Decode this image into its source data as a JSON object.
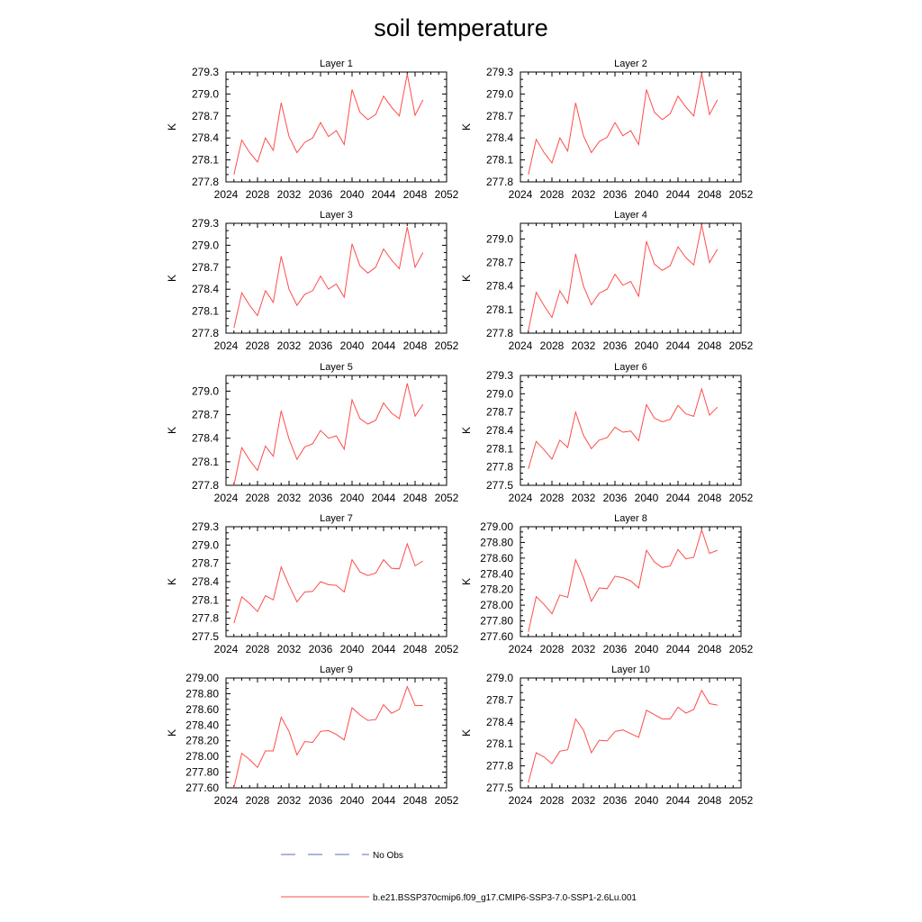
{
  "title": "soil temperature",
  "legend": {
    "entries": [
      {
        "label": "No Obs",
        "color": "#5a6fb4",
        "style": "dashed"
      },
      {
        "label": "b.e21.BSSP370cmip6.f09_g17.CMIP6-SSP3-7.0-SSP1-2.6Lu.001",
        "color": "#ff4b4b",
        "style": "solid"
      }
    ]
  },
  "chart_data": [
    {
      "type": "line",
      "title": "Layer 1",
      "ylabel": "K",
      "xlim": [
        2024,
        2052
      ],
      "ylim": [
        277.8,
        279.3
      ],
      "xticks": [
        "2024",
        "2028",
        "2032",
        "2036",
        "2040",
        "2044",
        "2048",
        "2052"
      ],
      "yticks": [
        "277.8",
        "278.1",
        "278.4",
        "278.7",
        "279.0",
        "279.3"
      ],
      "x": [
        2025,
        2026,
        2027,
        2028,
        2029,
        2030,
        2031,
        2032,
        2033,
        2034,
        2035,
        2036,
        2037,
        2038,
        2039,
        2040,
        2041,
        2042,
        2043,
        2044,
        2045,
        2046,
        2047,
        2048,
        2049
      ],
      "series": [
        {
          "name": "b.e21.BSSP370cmip6.f09_g17.CMIP6-SSP3-7.0-SSP1-2.6Lu.001",
          "values": [
            277.9,
            278.37,
            278.2,
            278.07,
            278.4,
            278.23,
            278.88,
            278.42,
            278.2,
            278.34,
            278.4,
            278.61,
            278.42,
            278.5,
            278.31,
            279.06,
            278.75,
            278.65,
            278.72,
            278.97,
            278.82,
            278.7,
            279.27,
            278.71,
            278.92
          ]
        }
      ]
    },
    {
      "type": "line",
      "title": "Layer 2",
      "ylabel": "K",
      "xlim": [
        2024,
        2052
      ],
      "ylim": [
        277.8,
        279.3
      ],
      "xticks": [
        "2024",
        "2028",
        "2032",
        "2036",
        "2040",
        "2044",
        "2048",
        "2052"
      ],
      "yticks": [
        "277.8",
        "278.1",
        "278.4",
        "278.7",
        "279.0",
        "279.3"
      ],
      "x": [
        2025,
        2026,
        2027,
        2028,
        2029,
        2030,
        2031,
        2032,
        2033,
        2034,
        2035,
        2036,
        2037,
        2038,
        2039,
        2040,
        2041,
        2042,
        2043,
        2044,
        2045,
        2046,
        2047,
        2048,
        2049
      ],
      "series": [
        {
          "name": "b.e21.BSSP370cmip6.f09_g17.CMIP6-SSP3-7.0-SSP1-2.6Lu.001",
          "values": [
            277.9,
            278.38,
            278.2,
            278.06,
            278.4,
            278.22,
            278.88,
            278.43,
            278.2,
            278.35,
            278.41,
            278.61,
            278.43,
            278.5,
            278.31,
            279.06,
            278.75,
            278.65,
            278.73,
            278.97,
            278.82,
            278.7,
            279.28,
            278.72,
            278.92
          ]
        }
      ]
    },
    {
      "type": "line",
      "title": "Layer 3",
      "ylabel": "K",
      "xlim": [
        2024,
        2052
      ],
      "ylim": [
        277.8,
        279.3
      ],
      "xticks": [
        "2024",
        "2028",
        "2032",
        "2036",
        "2040",
        "2044",
        "2048",
        "2052"
      ],
      "yticks": [
        "277.8",
        "278.1",
        "278.4",
        "278.7",
        "279.0",
        "279.3"
      ],
      "x": [
        2025,
        2026,
        2027,
        2028,
        2029,
        2030,
        2031,
        2032,
        2033,
        2034,
        2035,
        2036,
        2037,
        2038,
        2039,
        2040,
        2041,
        2042,
        2043,
        2044,
        2045,
        2046,
        2047,
        2048,
        2049
      ],
      "series": [
        {
          "name": "b.e21.BSSP370cmip6.f09_g17.CMIP6-SSP3-7.0-SSP1-2.6Lu.001",
          "values": [
            277.87,
            278.35,
            278.18,
            278.04,
            278.38,
            278.22,
            278.85,
            278.4,
            278.18,
            278.33,
            278.38,
            278.58,
            278.4,
            278.47,
            278.29,
            279.02,
            278.72,
            278.62,
            278.7,
            278.95,
            278.8,
            278.68,
            279.25,
            278.7,
            278.9
          ]
        }
      ]
    },
    {
      "type": "line",
      "title": "Layer 4",
      "ylabel": "K",
      "xlim": [
        2024,
        2052
      ],
      "ylim": [
        277.8,
        279.2
      ],
      "xticks": [
        "2024",
        "2028",
        "2032",
        "2036",
        "2040",
        "2044",
        "2048",
        "2052"
      ],
      "yticks": [
        "277.8",
        "278.1",
        "278.4",
        "278.7",
        "279.0"
      ],
      "x": [
        2025,
        2026,
        2027,
        2028,
        2029,
        2030,
        2031,
        2032,
        2033,
        2034,
        2035,
        2036,
        2037,
        2038,
        2039,
        2040,
        2041,
        2042,
        2043,
        2044,
        2045,
        2046,
        2047,
        2048,
        2049
      ],
      "series": [
        {
          "name": "b.e21.BSSP370cmip6.f09_g17.CMIP6-SSP3-7.0-SSP1-2.6Lu.001",
          "values": [
            277.83,
            278.32,
            278.15,
            278.0,
            278.34,
            278.18,
            278.81,
            278.4,
            278.16,
            278.31,
            278.36,
            278.55,
            278.41,
            278.46,
            278.27,
            278.97,
            278.68,
            278.6,
            278.66,
            278.9,
            278.76,
            278.67,
            279.18,
            278.7,
            278.87
          ]
        }
      ]
    },
    {
      "type": "line",
      "title": "Layer 5",
      "ylabel": "K",
      "xlim": [
        2024,
        2052
      ],
      "ylim": [
        277.8,
        279.2
      ],
      "xticks": [
        "2024",
        "2028",
        "2032",
        "2036",
        "2040",
        "2044",
        "2048",
        "2052"
      ],
      "yticks": [
        "277.8",
        "278.1",
        "278.4",
        "278.7",
        "279.0"
      ],
      "x": [
        2025,
        2026,
        2027,
        2028,
        2029,
        2030,
        2031,
        2032,
        2033,
        2034,
        2035,
        2036,
        2037,
        2038,
        2039,
        2040,
        2041,
        2042,
        2043,
        2044,
        2045,
        2046,
        2047,
        2048,
        2049
      ],
      "series": [
        {
          "name": "b.e21.BSSP370cmip6.f09_g17.CMIP6-SSP3-7.0-SSP1-2.6Lu.001",
          "values": [
            277.8,
            278.28,
            278.12,
            277.99,
            278.3,
            278.17,
            278.75,
            278.39,
            278.13,
            278.29,
            278.33,
            278.5,
            278.4,
            278.43,
            278.26,
            278.89,
            278.65,
            278.58,
            278.63,
            278.85,
            278.72,
            278.65,
            279.1,
            278.68,
            278.83
          ]
        }
      ]
    },
    {
      "type": "line",
      "title": "Layer 6",
      "ylabel": "K",
      "xlim": [
        2024,
        2052
      ],
      "ylim": [
        277.5,
        279.3
      ],
      "xticks": [
        "2024",
        "2028",
        "2032",
        "2036",
        "2040",
        "2044",
        "2048",
        "2052"
      ],
      "yticks": [
        "277.5",
        "277.8",
        "278.1",
        "278.4",
        "278.7",
        "279.0",
        "279.3"
      ],
      "x": [
        2025,
        2026,
        2027,
        2028,
        2029,
        2030,
        2031,
        2032,
        2033,
        2034,
        2035,
        2036,
        2037,
        2038,
        2039,
        2040,
        2041,
        2042,
        2043,
        2044,
        2045,
        2046,
        2047,
        2048,
        2049
      ],
      "series": [
        {
          "name": "b.e21.BSSP370cmip6.f09_g17.CMIP6-SSP3-7.0-SSP1-2.6Lu.001",
          "values": [
            277.77,
            278.22,
            278.08,
            277.93,
            278.24,
            278.12,
            278.7,
            278.32,
            278.1,
            278.24,
            278.28,
            278.45,
            278.37,
            278.39,
            278.23,
            278.82,
            278.6,
            278.54,
            278.58,
            278.81,
            278.67,
            278.63,
            279.08,
            278.65,
            278.78
          ]
        }
      ]
    },
    {
      "type": "line",
      "title": "Layer 7",
      "ylabel": "K",
      "xlim": [
        2024,
        2052
      ],
      "ylim": [
        277.5,
        279.3
      ],
      "xticks": [
        "2024",
        "2028",
        "2032",
        "2036",
        "2040",
        "2044",
        "2048",
        "2052"
      ],
      "yticks": [
        "277.5",
        "277.8",
        "278.1",
        "278.4",
        "278.7",
        "279.0",
        "279.3"
      ],
      "x": [
        2025,
        2026,
        2027,
        2028,
        2029,
        2030,
        2031,
        2032,
        2033,
        2034,
        2035,
        2036,
        2037,
        2038,
        2039,
        2040,
        2041,
        2042,
        2043,
        2044,
        2045,
        2046,
        2047,
        2048,
        2049
      ],
      "series": [
        {
          "name": "b.e21.BSSP370cmip6.f09_g17.CMIP6-SSP3-7.0-SSP1-2.6Lu.001",
          "values": [
            277.72,
            278.15,
            278.04,
            277.91,
            278.17,
            278.1,
            278.64,
            278.34,
            278.07,
            278.23,
            278.24,
            278.4,
            278.35,
            278.34,
            278.23,
            278.76,
            278.56,
            278.5,
            278.54,
            278.76,
            278.62,
            278.61,
            279.02,
            278.66,
            278.74
          ]
        }
      ]
    },
    {
      "type": "line",
      "title": "Layer 8",
      "ylabel": "K",
      "xlim": [
        2024,
        2052
      ],
      "ylim": [
        277.6,
        279.0
      ],
      "xticks": [
        "2024",
        "2028",
        "2032",
        "2036",
        "2040",
        "2044",
        "2048",
        "2052"
      ],
      "yticks": [
        "277.60",
        "277.80",
        "278.00",
        "278.20",
        "278.40",
        "278.60",
        "278.80",
        "279.00"
      ],
      "x": [
        2025,
        2026,
        2027,
        2028,
        2029,
        2030,
        2031,
        2032,
        2033,
        2034,
        2035,
        2036,
        2037,
        2038,
        2039,
        2040,
        2041,
        2042,
        2043,
        2044,
        2045,
        2046,
        2047,
        2048,
        2049
      ],
      "series": [
        {
          "name": "b.e21.BSSP370cmip6.f09_g17.CMIP6-SSP3-7.0-SSP1-2.6Lu.001",
          "values": [
            277.66,
            278.11,
            278.01,
            277.89,
            278.13,
            278.1,
            278.58,
            278.35,
            278.05,
            278.22,
            278.21,
            278.37,
            278.35,
            278.31,
            278.22,
            278.7,
            278.55,
            278.48,
            278.5,
            278.71,
            278.59,
            278.61,
            278.96,
            278.66,
            278.7
          ]
        }
      ]
    },
    {
      "type": "line",
      "title": "Layer 9",
      "ylabel": "K",
      "xlim": [
        2024,
        2052
      ],
      "ylim": [
        277.6,
        279.0
      ],
      "xticks": [
        "2024",
        "2028",
        "2032",
        "2036",
        "2040",
        "2044",
        "2048",
        "2052"
      ],
      "yticks": [
        "277.60",
        "277.80",
        "278.00",
        "278.20",
        "278.40",
        "278.60",
        "278.80",
        "279.00"
      ],
      "x": [
        2025,
        2026,
        2027,
        2028,
        2029,
        2030,
        2031,
        2032,
        2033,
        2034,
        2035,
        2036,
        2037,
        2038,
        2039,
        2040,
        2041,
        2042,
        2043,
        2044,
        2045,
        2046,
        2047,
        2048,
        2049
      ],
      "series": [
        {
          "name": "b.e21.BSSP370cmip6.f09_g17.CMIP6-SSP3-7.0-SSP1-2.6Lu.001",
          "values": [
            277.6,
            278.04,
            277.96,
            277.86,
            278.07,
            278.07,
            278.5,
            278.32,
            278.02,
            278.19,
            278.18,
            278.32,
            278.33,
            278.28,
            278.21,
            278.62,
            278.53,
            278.46,
            278.47,
            278.66,
            278.55,
            278.6,
            278.89,
            278.65,
            278.65
          ]
        }
      ]
    },
    {
      "type": "line",
      "title": "Layer 10",
      "ylabel": "K",
      "xlim": [
        2024,
        2052
      ],
      "ylim": [
        277.5,
        279.0
      ],
      "xticks": [
        "2024",
        "2028",
        "2032",
        "2036",
        "2040",
        "2044",
        "2048",
        "2052"
      ],
      "yticks": [
        "277.5",
        "277.8",
        "278.1",
        "278.4",
        "278.7",
        "279.0"
      ],
      "x": [
        2025,
        2026,
        2027,
        2028,
        2029,
        2030,
        2031,
        2032,
        2033,
        2034,
        2035,
        2036,
        2037,
        2038,
        2039,
        2040,
        2041,
        2042,
        2043,
        2044,
        2045,
        2046,
        2047,
        2048,
        2049
      ],
      "series": [
        {
          "name": "b.e21.BSSP370cmip6.f09_g17.CMIP6-SSP3-7.0-SSP1-2.6Lu.001",
          "values": [
            277.57,
            277.98,
            277.92,
            277.83,
            278.0,
            278.02,
            278.44,
            278.29,
            277.98,
            278.15,
            278.14,
            278.27,
            278.29,
            278.24,
            278.19,
            278.56,
            278.5,
            278.44,
            278.44,
            278.6,
            278.52,
            278.57,
            278.83,
            278.65,
            278.63
          ]
        }
      ]
    }
  ]
}
